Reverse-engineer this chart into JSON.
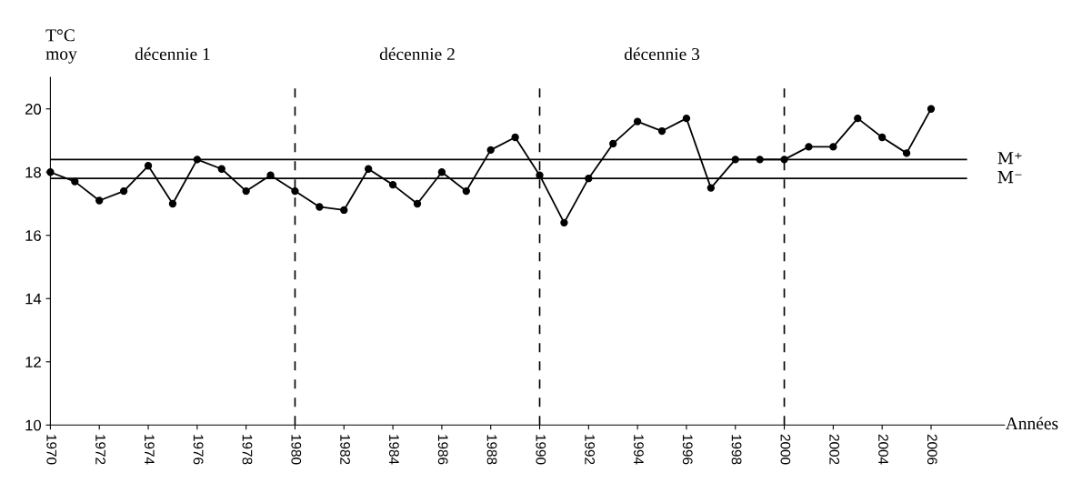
{
  "chart_data": {
    "type": "line",
    "ylabel": "T°C\nmoy",
    "xlabel": "Années",
    "x": [
      1970,
      1971,
      1972,
      1973,
      1974,
      1975,
      1976,
      1977,
      1978,
      1979,
      1980,
      1981,
      1982,
      1983,
      1984,
      1985,
      1986,
      1987,
      1988,
      1989,
      1990,
      1991,
      1992,
      1993,
      1994,
      1995,
      1996,
      1997,
      1998,
      1999,
      2000,
      2001,
      2002,
      2003,
      2004,
      2005,
      2006
    ],
    "values": [
      18.0,
      17.7,
      17.1,
      17.4,
      18.2,
      17.0,
      18.4,
      18.1,
      17.4,
      17.9,
      17.4,
      16.9,
      16.8,
      18.1,
      17.6,
      17.0,
      18.0,
      17.4,
      18.7,
      19.1,
      17.9,
      16.4,
      17.8,
      18.9,
      19.6,
      19.3,
      19.7,
      17.5,
      18.4,
      18.4,
      18.4,
      18.8,
      18.8,
      19.7,
      19.1,
      18.6,
      20.0
    ],
    "color": "#000000",
    "marker": "circle",
    "line_style": "solid",
    "grid": false,
    "legend": false,
    "xlim": [
      1970,
      2009
    ],
    "ylim": [
      10,
      21
    ],
    "xticks": [
      1970,
      1972,
      1974,
      1976,
      1978,
      1980,
      1982,
      1984,
      1986,
      1988,
      1990,
      1992,
      1994,
      1996,
      1998,
      2000,
      2002,
      2004,
      2006
    ],
    "yticks": [
      10,
      12,
      14,
      16,
      18,
      20
    ],
    "ref_lines": [
      {
        "axis": "y",
        "value": 18.4,
        "label": "M⁺",
        "color": "#000000",
        "line_style": "solid"
      },
      {
        "axis": "y",
        "value": 17.8,
        "label": "M⁻",
        "color": "#000000",
        "line_style": "solid"
      },
      {
        "axis": "x",
        "value": 1980,
        "color": "#000000",
        "line_style": "dashed"
      },
      {
        "axis": "x",
        "value": 1990,
        "color": "#000000",
        "line_style": "dashed"
      },
      {
        "axis": "x",
        "value": 2000,
        "color": "#000000",
        "line_style": "dashed"
      }
    ],
    "annotations": [
      "décennie 1",
      "décennie 2",
      "décennie 3"
    ]
  }
}
